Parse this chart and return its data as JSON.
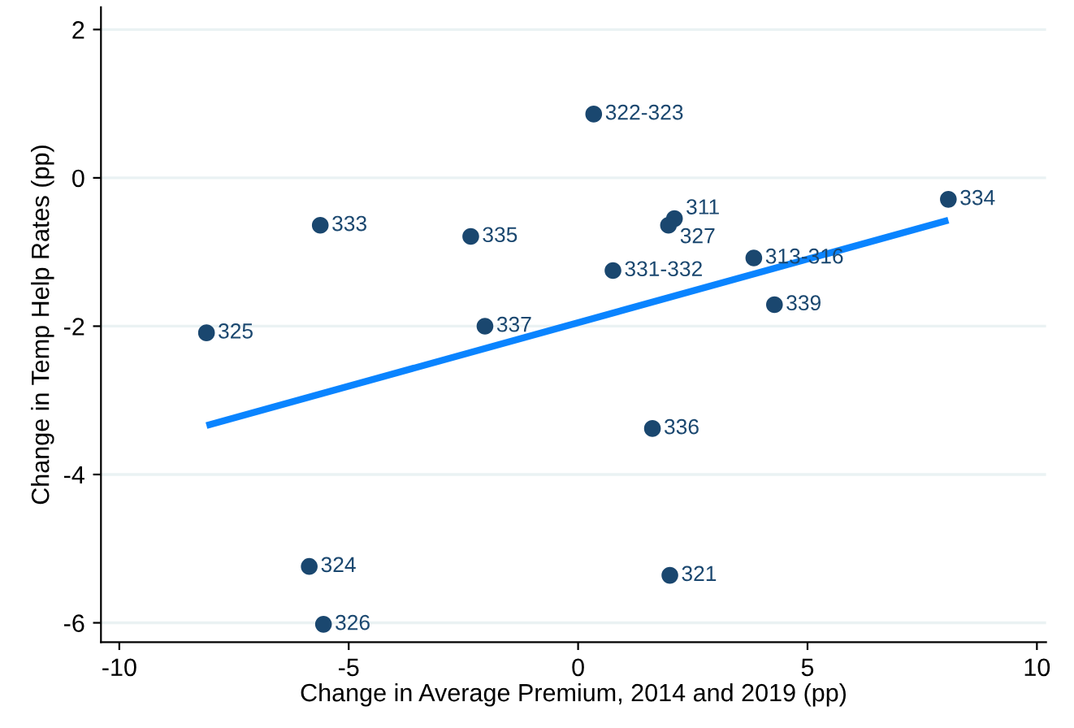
{
  "chart_data": {
    "type": "scatter",
    "xlabel": "Change in Average Premium, 2014 and 2019 (pp)",
    "ylabel": "Change in Temp Help Rates (pp)",
    "xlim": [
      -10.4,
      10.2
    ],
    "ylim": [
      -6.26,
      2.3
    ],
    "xticks": [
      -10,
      -5,
      0,
      5,
      10
    ],
    "yticks": [
      -6,
      -4,
      -2,
      0,
      2
    ],
    "grid": "y",
    "series": [
      {
        "marker": "circle",
        "color": "#1a476f",
        "x": [
          0.34,
          8.07,
          2.1,
          1.97,
          3.83,
          0.76,
          4.28,
          -2.03,
          -2.34,
          -5.62,
          -8.1,
          1.62,
          -5.86,
          -5.55,
          2.0
        ],
        "values": [
          0.86,
          -0.29,
          -0.55,
          -0.64,
          -1.08,
          -1.25,
          -1.71,
          -2.0,
          -0.79,
          -0.64,
          -2.09,
          -3.38,
          -5.24,
          -6.02,
          -5.36
        ]
      },
      {
        "type": "line",
        "color": "#0a84ff",
        "x": [
          -8.1,
          8.07
        ],
        "values": [
          -3.34,
          -0.57
        ]
      }
    ],
    "annotations": [
      {
        "text": "322-323",
        "x": 0.34,
        "y": 0.86
      },
      {
        "text": "334",
        "x": 8.07,
        "y": -0.29
      },
      {
        "text": "311",
        "x": 2.1,
        "y": -0.55
      },
      {
        "text": "327",
        "x": 1.97,
        "y": -0.64
      },
      {
        "text": "313-316",
        "x": 3.83,
        "y": -1.08
      },
      {
        "text": "331-332",
        "x": 0.76,
        "y": -1.25
      },
      {
        "text": "339",
        "x": 4.28,
        "y": -1.71
      },
      {
        "text": "337",
        "x": -2.03,
        "y": -2.0
      },
      {
        "text": "335",
        "x": -2.34,
        "y": -0.79
      },
      {
        "text": "333",
        "x": -5.62,
        "y": -0.64
      },
      {
        "text": "325",
        "x": -8.1,
        "y": -2.09
      },
      {
        "text": "336",
        "x": 1.62,
        "y": -3.38
      },
      {
        "text": "324",
        "x": -5.86,
        "y": -5.24
      },
      {
        "text": "326",
        "x": -5.55,
        "y": -6.02
      },
      {
        "text": "321",
        "x": 2.0,
        "y": -5.36
      }
    ]
  }
}
